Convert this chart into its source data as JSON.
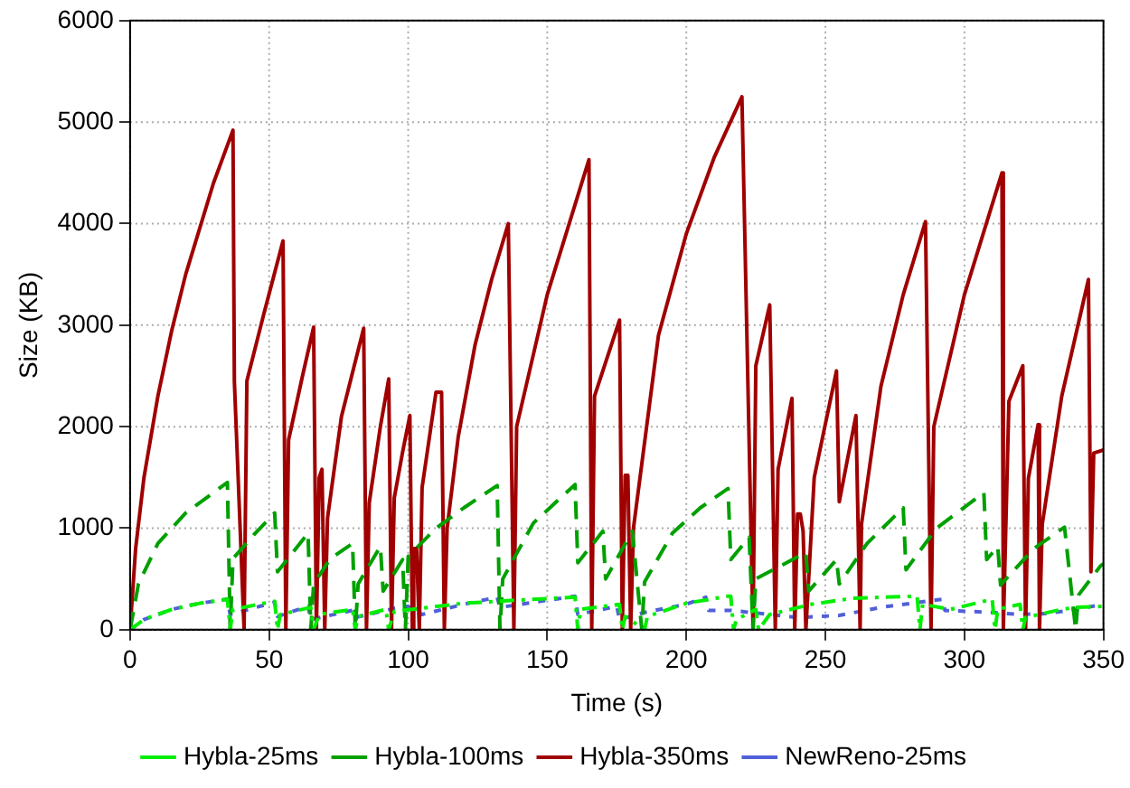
{
  "chart_data": {
    "type": "line",
    "xlabel": "Time (s)",
    "ylabel": "Size (KB)",
    "xlim": [
      0,
      350
    ],
    "xticks": [
      0,
      50,
      100,
      150,
      200,
      250,
      300,
      350
    ],
    "ylim": [
      0,
      6000
    ],
    "yticks": [
      0,
      1000,
      2000,
      3000,
      4000,
      5000,
      6000
    ],
    "grid": true,
    "legend": "bottom",
    "marker": "none",
    "series": [
      {
        "name": "Hybla-25ms",
        "color": "#00ee00",
        "line_style": "dashdot",
        "x": [
          0,
          5,
          15,
          25,
          35,
          36,
          37,
          52,
          53,
          54,
          65,
          66,
          68,
          80,
          81,
          82,
          92,
          93,
          95,
          120,
          132,
          160,
          161,
          162,
          176,
          177,
          178,
          185,
          186,
          200,
          215,
          216,
          217,
          218,
          225,
          226,
          230,
          245,
          260,
          283,
          284,
          285,
          295,
          310,
          311,
          312,
          320,
          321,
          322,
          335,
          340,
          350
        ],
        "values": [
          0,
          100,
          200,
          260,
          300,
          0,
          200,
          280,
          0,
          150,
          220,
          0,
          150,
          200,
          0,
          130,
          200,
          0,
          180,
          260,
          280,
          320,
          0,
          200,
          250,
          0,
          130,
          0,
          130,
          260,
          330,
          330,
          0,
          100,
          200,
          0,
          150,
          250,
          310,
          330,
          0,
          250,
          200,
          300,
          0,
          200,
          250,
          0,
          120,
          200,
          220,
          230
        ]
      },
      {
        "name": "Hybla-100ms",
        "color": "#00a000",
        "line_style": "dashed",
        "x": [
          0,
          3,
          10,
          20,
          35,
          36,
          37,
          45,
          52,
          53,
          64,
          65,
          66,
          72,
          80,
          81,
          82,
          90,
          91,
          98,
          99,
          100,
          110,
          120,
          132,
          133,
          134,
          145,
          160,
          161,
          170,
          171,
          180.6,
          184,
          185,
          195,
          205,
          215,
          216,
          222.6,
          224,
          225,
          243,
          244,
          254,
          255,
          265,
          278,
          279,
          290,
          307,
          308,
          312,
          313,
          325,
          336,
          340,
          341,
          349,
          350
        ],
        "values": [
          0,
          450,
          850,
          1150,
          1450,
          0,
          700,
          950,
          1150,
          570,
          950,
          0,
          450,
          700,
          850,
          0,
          450,
          820,
          380,
          690,
          0,
          720,
          1000,
          1200,
          1420,
          0,
          500,
          1050,
          1430,
          660,
          970,
          500,
          970,
          0,
          470,
          950,
          1200,
          1390,
          690,
          910,
          0,
          500,
          760,
          380,
          690,
          450,
          850,
          1200,
          590,
          1000,
          1350,
          690,
          820,
          440,
          800,
          1010,
          0,
          340,
          630,
          650
        ]
      },
      {
        "name": "Hybla-350ms",
        "color": "#a00000",
        "line_style": "solid",
        "x": [
          0,
          2,
          5,
          10,
          15,
          20,
          25,
          30,
          37,
          37.5,
          41,
          42,
          48,
          55,
          56,
          57,
          62,
          66,
          67,
          68,
          69,
          70,
          71,
          76,
          84,
          85,
          86,
          90,
          93,
          94,
          95,
          98,
          100.6,
          101.5,
          102,
          103,
          104,
          105,
          110,
          112,
          113,
          114,
          118,
          124,
          130,
          136,
          138,
          139,
          150,
          165,
          166,
          167,
          176,
          177,
          178,
          179,
          180,
          181,
          190,
          200,
          210,
          220,
          224,
          225,
          230,
          232,
          233,
          238,
          239,
          240,
          241,
          242,
          243,
          246,
          254,
          255,
          261,
          262.5,
          263,
          270,
          278,
          286,
          288,
          289,
          300,
          313.5,
          314,
          316,
          321,
          322,
          323,
          326.5,
          327,
          328,
          335,
          344.6,
          345.5,
          346.5,
          350
        ],
        "values": [
          0,
          800,
          1500,
          2300,
          2950,
          3500,
          3950,
          4400,
          4920,
          2450,
          0,
          2450,
          3100,
          3830,
          0,
          1870,
          2500,
          2980,
          0,
          1500,
          1580,
          0,
          1100,
          2100,
          2970,
          0,
          1250,
          2000,
          2470,
          0,
          1300,
          1750,
          2110,
          0,
          800,
          800,
          0,
          1400,
          2340,
          2340,
          0,
          1000,
          1900,
          2800,
          3450,
          4000,
          0,
          2000,
          3300,
          4630,
          0,
          2300,
          3050,
          0,
          1520,
          1520,
          0,
          1000,
          2900,
          3900,
          4650,
          5250,
          0,
          2600,
          3200,
          0,
          1580,
          2280,
          0,
          1140,
          1140,
          970,
          0,
          1500,
          2550,
          1260,
          2110,
          0,
          1040,
          2400,
          3300,
          4020,
          0,
          2000,
          3300,
          4500,
          0,
          2250,
          2600,
          0,
          1490,
          2020,
          0,
          1040,
          2300,
          3450,
          570,
          1740,
          1770
        ]
      },
      {
        "name": "NewReno-25ms",
        "color": "#5060d8",
        "line_style": "dotted",
        "x": [
          0,
          5,
          15,
          25,
          35,
          36,
          52,
          53,
          64,
          65,
          80,
          81,
          95,
          100,
          105,
          120,
          132,
          133,
          160,
          161,
          175,
          176,
          185,
          200,
          207,
          208,
          216,
          230,
          240,
          255,
          270,
          292,
          293,
          310,
          320,
          330,
          340,
          350
        ],
        "values": [
          0,
          100,
          200,
          260,
          300,
          150,
          270,
          130,
          230,
          100,
          190,
          120,
          210,
          230,
          150,
          250,
          320,
          220,
          330,
          150,
          230,
          100,
          170,
          250,
          320,
          190,
          190,
          150,
          120,
          140,
          220,
          300,
          190,
          170,
          150,
          160,
          200,
          250
        ]
      }
    ]
  }
}
